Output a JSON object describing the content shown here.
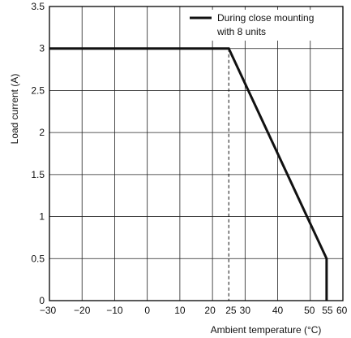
{
  "chart_data": {
    "type": "line",
    "xlabel": "Ambient temperature (°C)",
    "ylabel": "Load current (A)",
    "xlim": [
      -30,
      60
    ],
    "ylim": [
      0,
      3.5
    ],
    "grid": true,
    "x_ticks": [
      -30,
      -20,
      -10,
      0,
      10,
      20,
      25,
      30,
      40,
      50,
      55,
      60
    ],
    "x_tick_labels": [
      "−30",
      "−20",
      "−10",
      "0",
      "10",
      "20",
      "25",
      "30",
      "40",
      "50",
      "55",
      "60"
    ],
    "y_ticks": [
      0,
      0.5,
      1,
      1.5,
      2,
      2.5,
      3,
      3.5
    ],
    "y_tick_labels": [
      "0",
      "0.5",
      "1",
      "1.5",
      "2",
      "2.5",
      "3",
      "3.5"
    ],
    "legend_position": "top-right",
    "series": [
      {
        "name": "During close mounting with 8 units",
        "legend_lines": [
          "During close mounting",
          "with 8 units"
        ],
        "x": [
          -30,
          25,
          55,
          55
        ],
        "y": [
          3,
          3,
          0.5,
          0
        ]
      }
    ],
    "reference_lines": [
      {
        "x": 25,
        "y_from": 0,
        "y_to": 3,
        "style": "dashed"
      }
    ]
  }
}
